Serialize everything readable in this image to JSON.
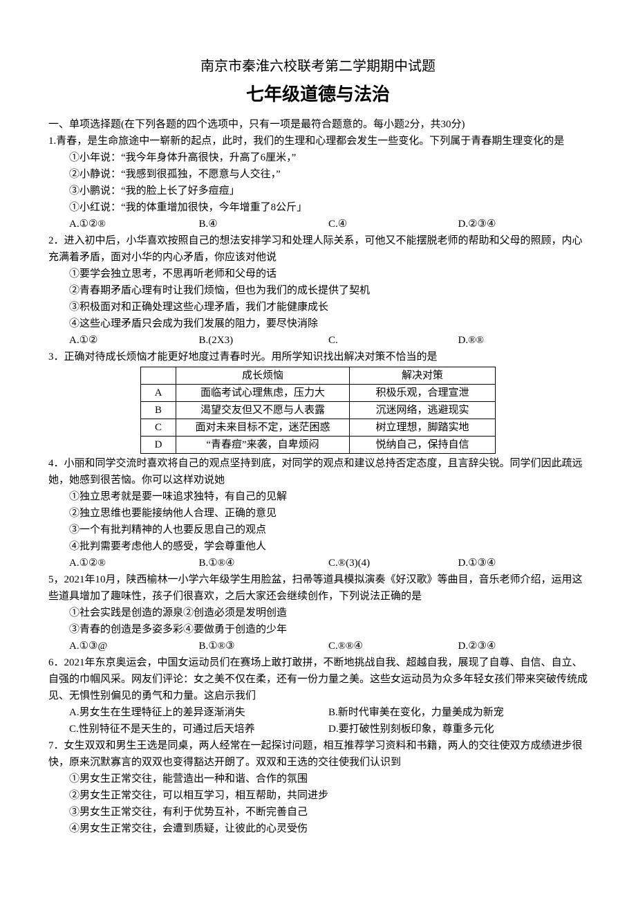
{
  "title1": "南京市秦淮六校联考第二学期期中试题",
  "title2": "七年级道德与法治",
  "sectionIntro": "一、单项选择题(在下列各题的四个选项中，只有一项是最符合题意的。每小题2分，共30分)",
  "q1": {
    "stem": "1.青春，是生命旅途中一崭新的起点，此时，我们的生理和心理都会发生一些变化。下列属于青春期生理变化的是",
    "s1": "①小年说：“我今年身体升高很快，升高了6厘米，”",
    "s2": "②小静说：“我感到很孤独，不愿意与人交往，”",
    "s3": "③小鹏说：“我的脸上长了好多痘痘」",
    "s4": "①小红说：“我的体重增加很快，今年增重了8公斤」",
    "a": "A.①②®",
    "b": "B.④",
    "c": "C.④",
    "d": "D.②③④"
  },
  "q2": {
    "stem": "2．进入初中后，小华喜欢按照自己的想法安排学习和处理人际关系，可他又不能摆脱老师的帮助和父母的照顾，内心充满着矛盾，面对小华的内心矛盾，你应该对他说",
    "s1": "①要学会独立思考，不思再听老师和父母的话",
    "s2": "②青春期矛盾心理有时让我们烦恼，但也为我们的成长提供了契机",
    "s3": "③积极面对和正确处理这些心理矛盾，我们才能健康成长",
    "s4": "④这些心理矛盾只会成为我们发展的阻力，要尽快消除",
    "a": "A.①②",
    "b": "B.(2X3)",
    "c": "C.",
    "d": "D.®®"
  },
  "q3": {
    "stem": "3．正确对待成长烦恼才能更好地度过青春时光。用所学知识找出解决对策不恰当的是",
    "h1": "成长烦恼",
    "h2": "解决对策",
    "rA": {
      "k": "A",
      "c1": "面临考试心理焦虑，压力大",
      "c2": "积极乐观，合理宣泄"
    },
    "rB": {
      "k": "B",
      "c1": "渴望交友但又不愿与人表露",
      "c2": "沉迷网络，逃避现实"
    },
    "rC": {
      "k": "C",
      "c1": "面对未来目标不定，迷茫困惑",
      "c2": "树立理想，脚踏实地"
    },
    "rD": {
      "k": "D",
      "c1": "“青春痘”来袭，自卑烦闷",
      "c2": "悦纳自己，保持自信"
    }
  },
  "q4": {
    "stem": "4．小丽和同学交流时喜欢将自己的观点坚持到底，对同学的观点和建议总持否定态度，且言辞尖锐。同学们因此疏远她，她感到很苦恼。你可以这样劝说她",
    "s1": "①独立思考就是要一味追求独特，有自己的见解",
    "s2": "②独立思维也要能接纳他人合理、正确的意见",
    "s3": "③一个有批判精神的人也要反思自己的观点",
    "s4": "④批判需要考虑他人的感受，学会尊重他人",
    "a": "A.①②®",
    "b": "B.①®④",
    "c": "C.®(3)(4)",
    "d": "D.①③④"
  },
  "q5": {
    "stem": "5，2021年10月，陕西榆林一小学六年级学生用脸盆，扫帚等道具模拟演奏《好汉歌》等曲目，音乐老师介绍，运用这些道具增加了趣味性，孩子们很喜欢，之后大家还会继续创作，下列说法正确的是",
    "s1": "①社会实践是创造的源泉②创造必须是发明创造",
    "s2": "③青春的创造是多姿多彩④要做勇于创造的少年",
    "a": "A.①③@",
    "b": "B.①®③",
    "c": "C.®®④",
    "d": "D.②③④"
  },
  "q6": {
    "stem": "6．2021年东京奥运会，中国女运动员们在赛场上敢打敢拼，不断地挑战自我、超越自我，展现了自尊、自信、自立、自强的巾帼风采。网友们评论：女之美不仅在柔，还有一份力量之美。这些女运动员为众多年轻女孩们带来突破传统成见、无惧性别偏见的勇气和力量。这启示我们",
    "a": "A.男女生在生理特征上的差异逐渐消失",
    "b": "B.新时代审美在变化，力量美成为新宠",
    "c": "C.性别特征不是天生的，可通过后天培养",
    "d": "D.要打破性别刻板印象，尊重多元化"
  },
  "q7": {
    "stem": "7．女生双双和男生王选是同桌，两人经常在一起探讨问题，相互推荐学习资料和书籍，两人的交往使双方成绩进步很快，原来沉默寡言的双双也变得豁达开朗了。双双和王选的交往使我们认识到",
    "s1": "①男女生正常交往，能营造出一种和谐、合作的氛围",
    "s2": "②男女生正常交往，可以相互学习，相互帮助，共同进步",
    "s3": "③男女生正常交往，有利于优势互补，不断完善自己",
    "s4": "④男女生正常交往，会遭到质疑，让彼此的心灵受伤"
  }
}
